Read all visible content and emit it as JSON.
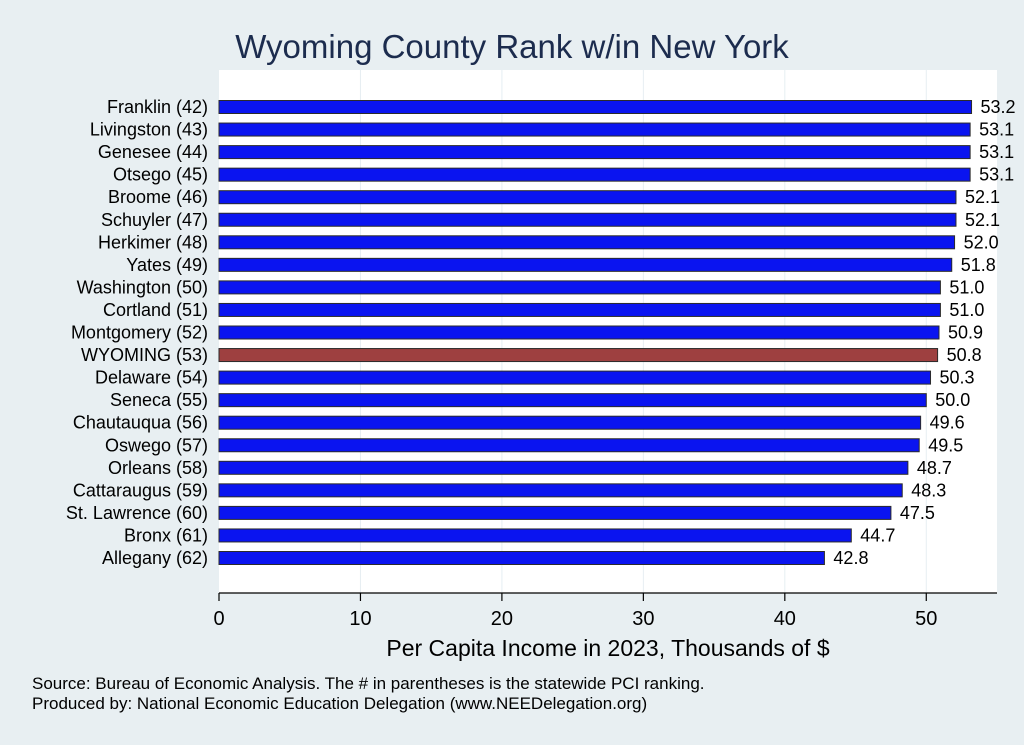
{
  "chart_data": {
    "type": "bar",
    "orientation": "horizontal",
    "title": "Wyoming County Rank w/in New York",
    "xlabel": "Per Capita Income in 2023, Thousands of $",
    "xlim": [
      0,
      55
    ],
    "xticks": [
      0,
      10,
      20,
      30,
      40,
      50
    ],
    "grid": true,
    "categories": [
      "Franklin (42)",
      "Livingston (43)",
      "Genesee (44)",
      "Otsego (45)",
      "Broome (46)",
      "Schuyler (47)",
      "Herkimer (48)",
      "Yates (49)",
      "Washington (50)",
      "Cortland (51)",
      "Montgomery (52)",
      "WYOMING (53)",
      "Delaware (54)",
      "Seneca (55)",
      "Chautauqua (56)",
      "Oswego (57)",
      "Orleans (58)",
      "Cattaraugus (59)",
      "St. Lawrence (60)",
      "Bronx (61)",
      "Allegany (62)"
    ],
    "values": [
      53.2,
      53.1,
      53.1,
      53.1,
      52.1,
      52.1,
      52.0,
      51.8,
      51.0,
      51.0,
      50.9,
      50.8,
      50.3,
      50.0,
      49.6,
      49.5,
      48.7,
      48.3,
      47.5,
      44.7,
      42.8
    ],
    "value_labels": [
      "53.2",
      "53.1",
      "53.1",
      "53.1",
      "52.1",
      "52.1",
      "52.0",
      "51.8",
      "51.0",
      "51.0",
      "50.9",
      "50.8",
      "50.3",
      "50.0",
      "49.6",
      "49.5",
      "48.7",
      "48.3",
      "47.5",
      "44.7",
      "42.8"
    ],
    "highlight_index": 11,
    "colors": {
      "bar": "#0a14f0",
      "highlight": "#9e4040",
      "plot_background": "#ffffff",
      "page_background": "#e8eff2",
      "grid": "#e6eef2",
      "title": "#1c2c4e"
    }
  },
  "footnotes": [
    "Source: Bureau of Economic Analysis. The # in parentheses is the statewide PCI ranking.",
    "Produced by: National Economic Education Delegation (www.NEEDelegation.org)"
  ]
}
